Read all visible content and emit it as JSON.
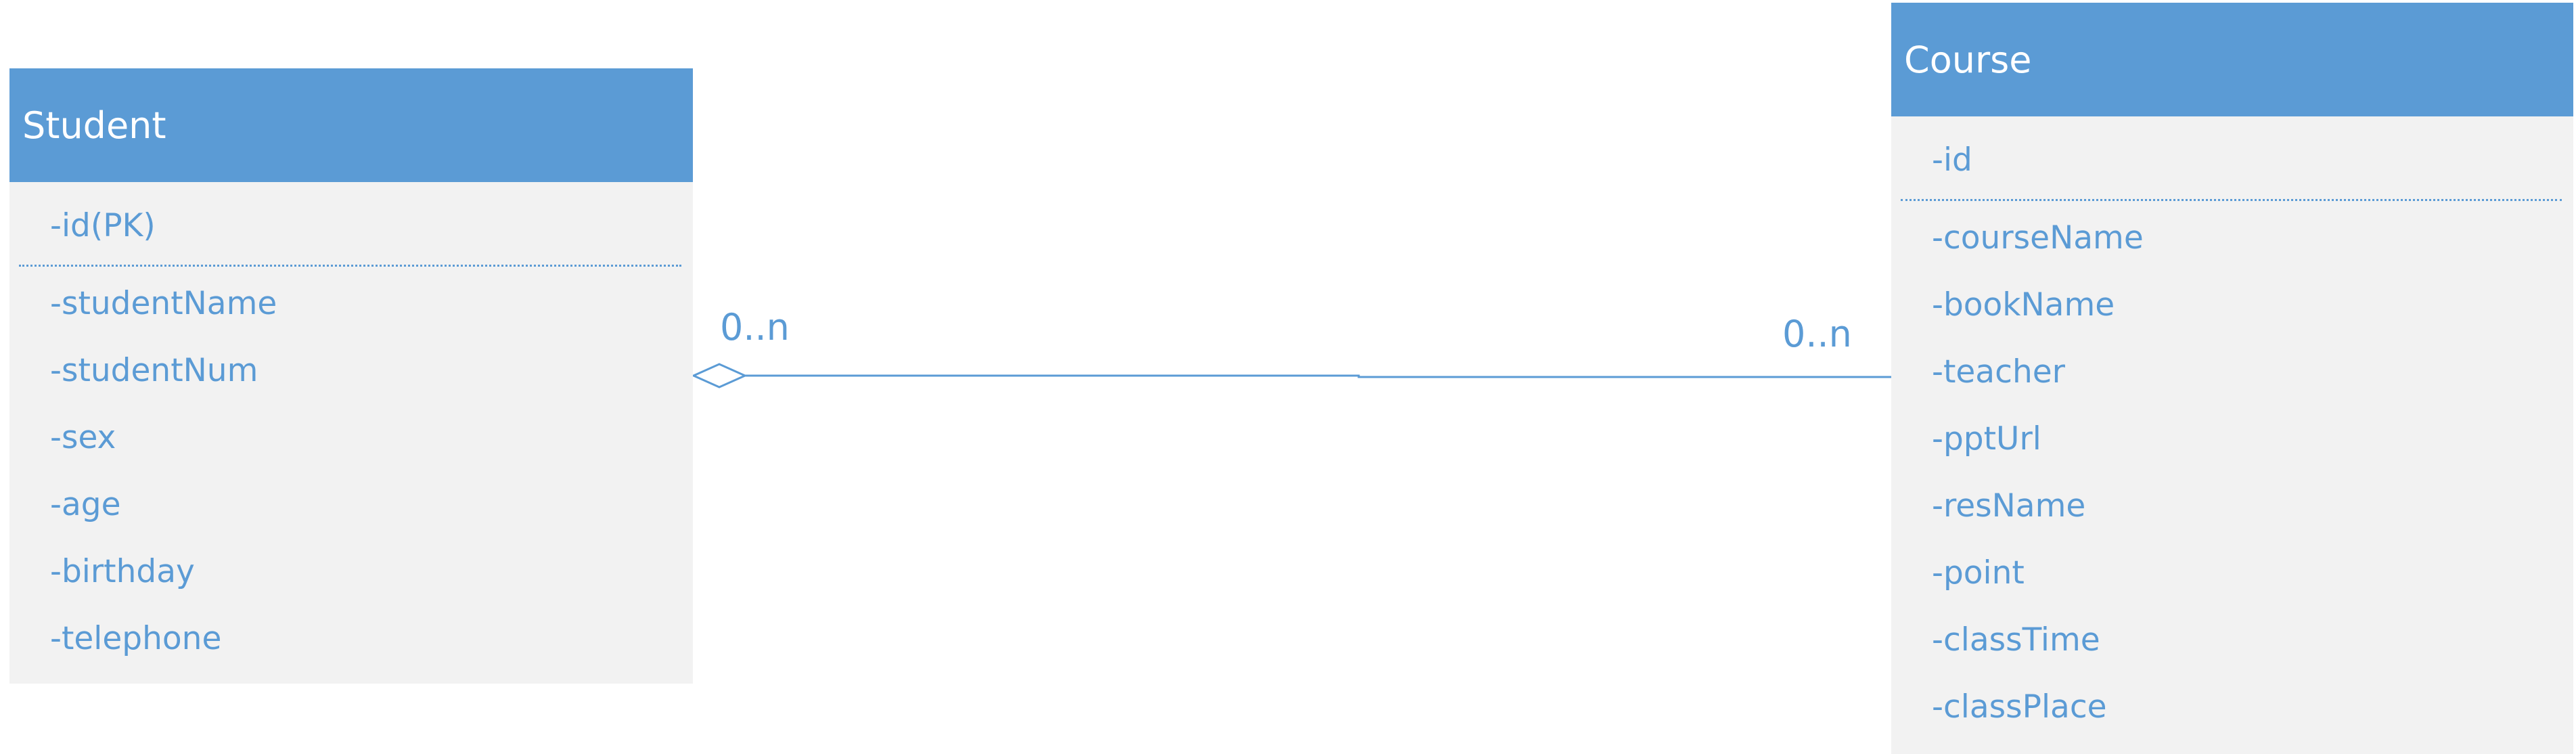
{
  "entities": {
    "student": {
      "name": "Student",
      "primary_key": "-id(PK)",
      "attributes": [
        "-studentName",
        "-studentNum",
        "-sex",
        "-age",
        "-birthday",
        "-telephone"
      ]
    },
    "course": {
      "name": "Course",
      "primary_key": "-id",
      "attributes": [
        "-courseName",
        "-bookName",
        "-teacher",
        "-pptUrl",
        "-resName",
        "-point",
        "-classTime",
        "-classPlace"
      ]
    }
  },
  "relationship": {
    "type": "aggregation",
    "student_multiplicity": "0..n",
    "course_multiplicity": "0..n"
  },
  "colors": {
    "header": "#5b9bd5",
    "body": "#f2f2f2",
    "text": "#5b9bd5",
    "header_text": "#ffffff",
    "line": "#5b9bd5"
  }
}
